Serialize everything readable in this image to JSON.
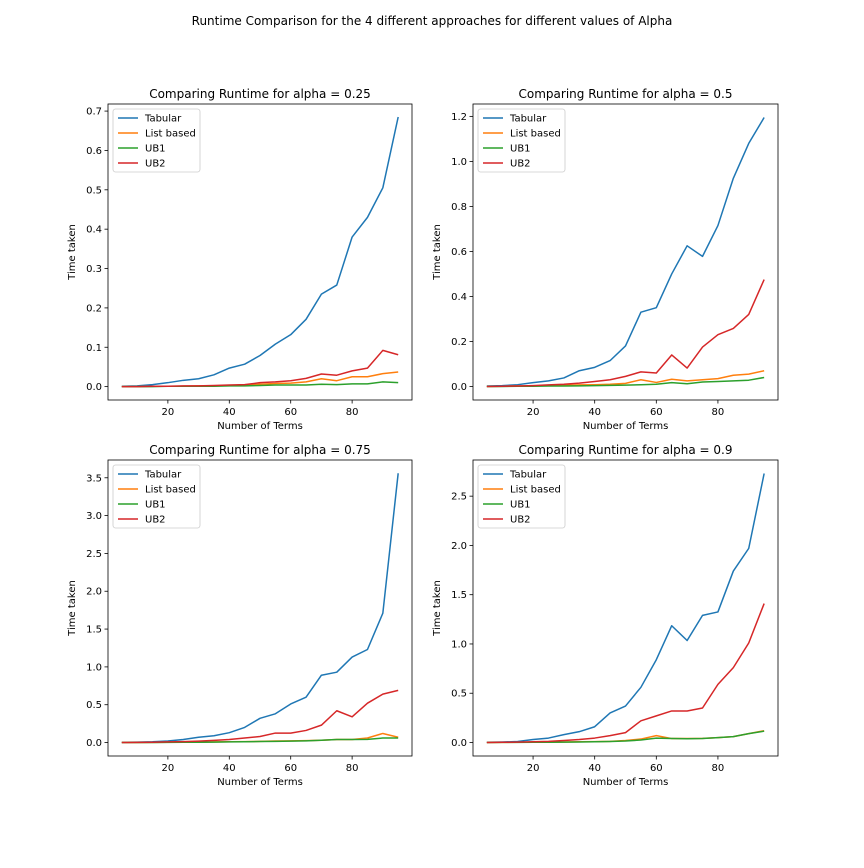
{
  "figure": {
    "suptitle": "Runtime Comparison for the 4 different approaches for different values of Alpha"
  },
  "chart_data": [
    {
      "type": "line",
      "title": "Comparing Runtime for alpha = 0.25",
      "xlabel": "Number of Terms",
      "ylabel": "Time taken",
      "xlim": [
        0.5,
        99.5
      ],
      "ylim": [
        -0.034,
        0.718
      ],
      "xticks": [
        20,
        40,
        60,
        80
      ],
      "yticks": [
        0.0,
        0.1,
        0.2,
        0.3,
        0.4,
        0.5,
        0.6,
        0.7
      ],
      "ytick_labels": [
        "0.0",
        "0.1",
        "0.2",
        "0.3",
        "0.4",
        "0.5",
        "0.6",
        "0.7"
      ],
      "legend": "upper left",
      "x": [
        5,
        10,
        15,
        20,
        25,
        30,
        35,
        40,
        45,
        50,
        55,
        60,
        65,
        70,
        75,
        80,
        85,
        90,
        95
      ],
      "series": [
        {
          "name": "Tabular",
          "color": "#1f77b4",
          "values": [
            0.001,
            0.002,
            0.005,
            0.01,
            0.016,
            0.02,
            0.03,
            0.047,
            0.057,
            0.079,
            0.108,
            0.132,
            0.171,
            0.235,
            0.258,
            0.38,
            0.43,
            0.505,
            0.685
          ]
        },
        {
          "name": "List based",
          "color": "#ff7f0e",
          "values": [
            0.0,
            0.0,
            0.001,
            0.001,
            0.001,
            0.002,
            0.002,
            0.003,
            0.004,
            0.006,
            0.008,
            0.009,
            0.012,
            0.02,
            0.015,
            0.025,
            0.025,
            0.033,
            0.037
          ]
        },
        {
          "name": "UB1",
          "color": "#2ca02c",
          "values": [
            0.0,
            0.0,
            0.0,
            0.001,
            0.001,
            0.001,
            0.001,
            0.002,
            0.002,
            0.003,
            0.004,
            0.004,
            0.004,
            0.006,
            0.005,
            0.007,
            0.007,
            0.012,
            0.01
          ]
        },
        {
          "name": "UB2",
          "color": "#d62728",
          "values": [
            0.0,
            0.0,
            0.001,
            0.001,
            0.002,
            0.002,
            0.003,
            0.004,
            0.005,
            0.01,
            0.012,
            0.015,
            0.021,
            0.032,
            0.029,
            0.04,
            0.047,
            0.092,
            0.081
          ]
        }
      ]
    },
    {
      "type": "line",
      "title": "Comparing Runtime for alpha = 0.5",
      "xlabel": "Number of Terms",
      "ylabel": "Time taken",
      "xlim": [
        0.5,
        99.5
      ],
      "ylim": [
        -0.06,
        1.255
      ],
      "xticks": [
        20,
        40,
        60,
        80
      ],
      "yticks": [
        0.0,
        0.2,
        0.4,
        0.6,
        0.8,
        1.0,
        1.2
      ],
      "ytick_labels": [
        "0.0",
        "0.2",
        "0.4",
        "0.6",
        "0.8",
        "1.0",
        "1.2"
      ],
      "legend": "upper left",
      "x": [
        5,
        10,
        15,
        20,
        25,
        30,
        35,
        40,
        45,
        50,
        55,
        60,
        65,
        70,
        75,
        80,
        85,
        90,
        95
      ],
      "series": [
        {
          "name": "Tabular",
          "color": "#1f77b4",
          "values": [
            0.002,
            0.004,
            0.008,
            0.017,
            0.025,
            0.038,
            0.07,
            0.085,
            0.115,
            0.18,
            0.33,
            0.35,
            0.5,
            0.625,
            0.578,
            0.715,
            0.925,
            1.08,
            1.195
          ]
        },
        {
          "name": "List based",
          "color": "#ff7f0e",
          "values": [
            0.0,
            0.001,
            0.002,
            0.003,
            0.004,
            0.005,
            0.007,
            0.008,
            0.01,
            0.014,
            0.03,
            0.018,
            0.032,
            0.025,
            0.03,
            0.035,
            0.05,
            0.055,
            0.07
          ]
        },
        {
          "name": "UB1",
          "color": "#2ca02c",
          "values": [
            0.0,
            0.0,
            0.001,
            0.001,
            0.002,
            0.002,
            0.003,
            0.004,
            0.005,
            0.006,
            0.008,
            0.01,
            0.017,
            0.012,
            0.02,
            0.022,
            0.025,
            0.028,
            0.04
          ]
        },
        {
          "name": "UB2",
          "color": "#d62728",
          "values": [
            0.0,
            0.001,
            0.002,
            0.004,
            0.007,
            0.01,
            0.015,
            0.022,
            0.03,
            0.045,
            0.065,
            0.06,
            0.14,
            0.082,
            0.175,
            0.23,
            0.258,
            0.32,
            0.475
          ]
        }
      ]
    },
    {
      "type": "line",
      "title": "Comparing Runtime for alpha = 0.75",
      "xlabel": "Number of Terms",
      "ylabel": "Time taken",
      "xlim": [
        0.5,
        99.5
      ],
      "ylim": [
        -0.178,
        3.735
      ],
      "xticks": [
        20,
        40,
        60,
        80
      ],
      "yticks": [
        0.0,
        0.5,
        1.0,
        1.5,
        2.0,
        2.5,
        3.0,
        3.5
      ],
      "ytick_labels": [
        "0.0",
        "0.5",
        "1.0",
        "1.5",
        "2.0",
        "2.5",
        "3.0",
        "3.5"
      ],
      "legend": "upper left",
      "x": [
        5,
        10,
        15,
        20,
        25,
        30,
        35,
        40,
        45,
        50,
        55,
        60,
        65,
        70,
        75,
        80,
        85,
        90,
        95
      ],
      "series": [
        {
          "name": "Tabular",
          "color": "#1f77b4",
          "values": [
            0.002,
            0.006,
            0.01,
            0.02,
            0.04,
            0.07,
            0.09,
            0.13,
            0.2,
            0.32,
            0.38,
            0.51,
            0.6,
            0.89,
            0.93,
            1.13,
            1.23,
            1.71,
            3.56
          ]
        },
        {
          "name": "List based",
          "color": "#ff7f0e",
          "values": [
            0.0,
            0.001,
            0.002,
            0.003,
            0.004,
            0.006,
            0.008,
            0.01,
            0.012,
            0.015,
            0.02,
            0.022,
            0.025,
            0.03,
            0.04,
            0.04,
            0.06,
            0.12,
            0.07
          ]
        },
        {
          "name": "UB1",
          "color": "#2ca02c",
          "values": [
            0.0,
            0.001,
            0.001,
            0.002,
            0.003,
            0.004,
            0.006,
            0.008,
            0.01,
            0.013,
            0.016,
            0.018,
            0.022,
            0.03,
            0.04,
            0.04,
            0.042,
            0.06,
            0.06
          ]
        },
        {
          "name": "UB2",
          "color": "#d62728",
          "values": [
            0.0,
            0.002,
            0.004,
            0.008,
            0.012,
            0.018,
            0.028,
            0.04,
            0.06,
            0.08,
            0.125,
            0.125,
            0.16,
            0.23,
            0.42,
            0.34,
            0.52,
            0.64,
            0.69
          ]
        }
      ]
    },
    {
      "type": "line",
      "title": "Comparing Runtime for alpha = 0.9",
      "xlabel": "Number of Terms",
      "ylabel": "Time taken",
      "xlim": [
        0.5,
        99.5
      ],
      "ylim": [
        -0.137,
        2.867
      ],
      "xticks": [
        20,
        40,
        60,
        80
      ],
      "yticks": [
        0.0,
        0.5,
        1.0,
        1.5,
        2.0,
        2.5
      ],
      "ytick_labels": [
        "0.0",
        "0.5",
        "1.0",
        "1.5",
        "2.0",
        "2.5"
      ],
      "legend": "upper left",
      "x": [
        5,
        10,
        15,
        20,
        25,
        30,
        35,
        40,
        45,
        50,
        55,
        60,
        65,
        70,
        75,
        80,
        85,
        90,
        95
      ],
      "series": [
        {
          "name": "Tabular",
          "color": "#1f77b4",
          "values": [
            0.002,
            0.005,
            0.01,
            0.03,
            0.045,
            0.08,
            0.11,
            0.16,
            0.3,
            0.37,
            0.56,
            0.84,
            1.185,
            1.035,
            1.29,
            1.325,
            1.74,
            1.97,
            2.73
          ]
        },
        {
          "name": "List based",
          "color": "#ff7f0e",
          "values": [
            0.0,
            0.001,
            0.002,
            0.003,
            0.004,
            0.005,
            0.007,
            0.009,
            0.012,
            0.02,
            0.035,
            0.07,
            0.04,
            0.04,
            0.042,
            0.05,
            0.06,
            0.09,
            0.12
          ]
        },
        {
          "name": "UB1",
          "color": "#2ca02c",
          "values": [
            0.0,
            0.001,
            0.001,
            0.002,
            0.003,
            0.004,
            0.005,
            0.007,
            0.01,
            0.015,
            0.025,
            0.045,
            0.04,
            0.038,
            0.04,
            0.05,
            0.06,
            0.09,
            0.115
          ]
        },
        {
          "name": "UB2",
          "color": "#d62728",
          "values": [
            0.0,
            0.002,
            0.004,
            0.008,
            0.012,
            0.02,
            0.03,
            0.045,
            0.07,
            0.1,
            0.22,
            0.27,
            0.32,
            0.32,
            0.35,
            0.59,
            0.76,
            1.01,
            1.41
          ]
        }
      ]
    }
  ]
}
